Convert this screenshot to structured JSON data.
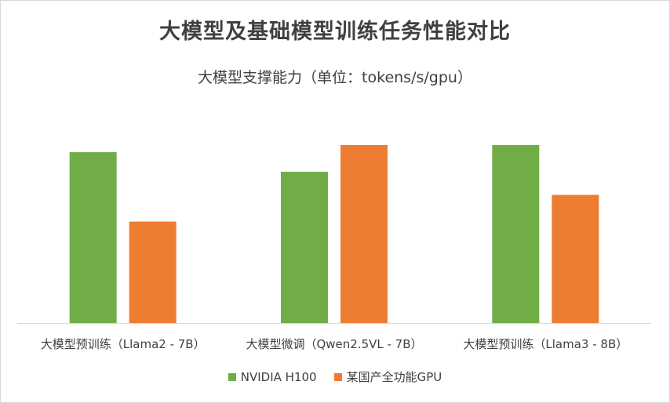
{
  "chart_data": {
    "type": "bar",
    "title": "大模型及基础模型训练任务性能对比",
    "subtitle": "大模型支撑能力（单位：tokens/s/gpu）",
    "categories": [
      "大模型预训练（Llama2 - 7B）",
      "大模型微调（Qwen2.5VL - 7B）",
      "大模型预训练（Llama3 - 8B）"
    ],
    "series": [
      {
        "name": "NVIDIA H100",
        "color": "#70ad47",
        "values": [
          96,
          85,
          100
        ]
      },
      {
        "name": "某国产全功能GPU",
        "color": "#ed7d31",
        "values": [
          57,
          100,
          72
        ]
      }
    ],
    "ylim": [
      0,
      100
    ],
    "xlabel": "",
    "ylabel": "",
    "grid": false,
    "legend_position": "bottom"
  }
}
